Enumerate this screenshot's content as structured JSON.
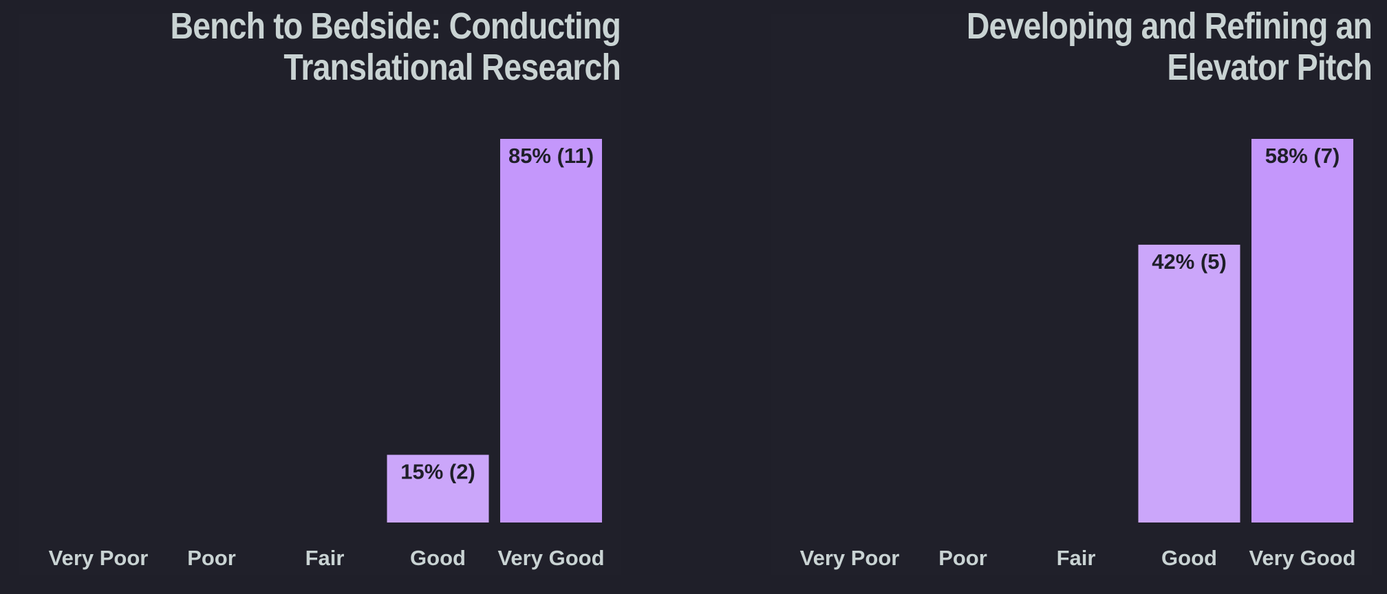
{
  "chart_data": [
    {
      "type": "bar",
      "title": "Bench to Bedside: Conducting Translational Research",
      "categories": [
        "Very Poor",
        "Poor",
        "Fair",
        "Good",
        "Very Good"
      ],
      "values": [
        0,
        0,
        0,
        15,
        85
      ],
      "counts": [
        0,
        0,
        0,
        2,
        11
      ],
      "data_labels": [
        "",
        "",
        "",
        "15% (2)",
        "85% (11)"
      ],
      "ylim": [
        0,
        85
      ],
      "grid": false,
      "colors": [
        "#c4a0f8",
        "#c4a0f8",
        "#c4a0f8",
        "#cba6fa",
        "#c497fb"
      ]
    },
    {
      "type": "bar",
      "title": "Developing and Refining an Elevator Pitch",
      "categories": [
        "Very Poor",
        "Poor",
        "Fair",
        "Good",
        "Very Good"
      ],
      "values": [
        0,
        0,
        0,
        42,
        58
      ],
      "counts": [
        0,
        0,
        0,
        5,
        7
      ],
      "data_labels": [
        "",
        "",
        "",
        "42% (5)",
        "58% (7)"
      ],
      "ylim": [
        0,
        58
      ],
      "grid": false,
      "colors": [
        "#c4a0f8",
        "#c4a0f8",
        "#c4a0f8",
        "#cba6fa",
        "#c497fb"
      ]
    }
  ]
}
